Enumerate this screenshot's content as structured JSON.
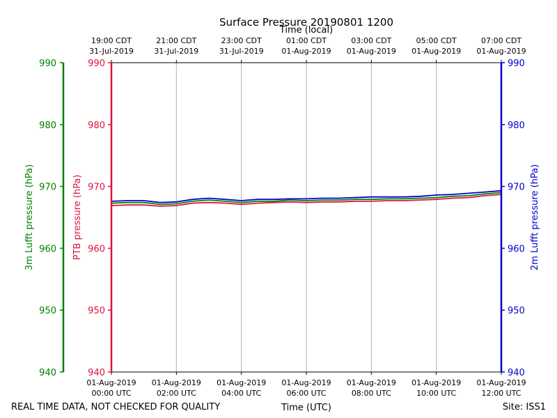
{
  "chart_data": {
    "type": "line",
    "title": "Surface Pressure 20190801 1200",
    "top_axis_label": "Time (local)",
    "xlabel": "Time (UTC)",
    "x_range_hours": [
      0,
      12
    ],
    "ylim": [
      940,
      990
    ],
    "y_ticks": [
      940,
      950,
      960,
      970,
      980,
      990
    ],
    "axes": {
      "left_outer": {
        "label": "3m Lufft pressure (hPa)",
        "color": "#008000"
      },
      "left_inner": {
        "label": "PTB pressure (hPa)",
        "color": "#dc143c"
      },
      "right": {
        "label": "2m Lufft pressure (hPa)",
        "color": "#0000cd"
      }
    },
    "bottom_ticks": [
      {
        "hour": 0,
        "line1": "01-Aug-2019",
        "line2": "00:00 UTC"
      },
      {
        "hour": 2,
        "line1": "01-Aug-2019",
        "line2": "02:00 UTC"
      },
      {
        "hour": 4,
        "line1": "01-Aug-2019",
        "line2": "04:00 UTC"
      },
      {
        "hour": 6,
        "line1": "01-Aug-2019",
        "line2": "06:00 UTC"
      },
      {
        "hour": 8,
        "line1": "01-Aug-2019",
        "line2": "08:00 UTC"
      },
      {
        "hour": 10,
        "line1": "01-Aug-2019",
        "line2": "10:00 UTC"
      },
      {
        "hour": 12,
        "line1": "01-Aug-2019",
        "line2": "12:00 UTC"
      }
    ],
    "top_ticks": [
      {
        "hour": 0,
        "line1": "19:00 CDT",
        "line2": "31-Jul-2019"
      },
      {
        "hour": 2,
        "line1": "21:00 CDT",
        "line2": "31-Jul-2019"
      },
      {
        "hour": 4,
        "line1": "23:00 CDT",
        "line2": "31-Jul-2019"
      },
      {
        "hour": 6,
        "line1": "01:00 CDT",
        "line2": "01-Aug-2019"
      },
      {
        "hour": 8,
        "line1": "03:00 CDT",
        "line2": "01-Aug-2019"
      },
      {
        "hour": 10,
        "line1": "05:00 CDT",
        "line2": "01-Aug-2019"
      },
      {
        "hour": 12,
        "line1": "07:00 CDT",
        "line2": "01-Aug-2019"
      }
    ],
    "series": [
      {
        "name": "3m Lufft pressure",
        "color": "#008000",
        "x": [
          0,
          0.5,
          1,
          1.5,
          2,
          2.5,
          3,
          3.5,
          4,
          4.5,
          5,
          5.5,
          6,
          6.5,
          7,
          7.5,
          8,
          8.5,
          9,
          9.5,
          10,
          10.5,
          11,
          11.5,
          12
        ],
        "values": [
          967.3,
          967.4,
          967.4,
          967.1,
          967.2,
          967.6,
          967.8,
          967.6,
          967.4,
          967.6,
          967.6,
          967.8,
          967.7,
          967.8,
          967.8,
          967.9,
          967.9,
          968.0,
          968.0,
          968.1,
          968.2,
          968.4,
          968.5,
          968.8,
          969.0
        ]
      },
      {
        "name": "PTB pressure",
        "color": "#dc143c",
        "x": [
          0,
          0.5,
          1,
          1.5,
          2,
          2.5,
          3,
          3.5,
          4,
          4.5,
          5,
          5.5,
          6,
          6.5,
          7,
          7.5,
          8,
          8.5,
          9,
          9.5,
          10,
          10.5,
          11,
          11.5,
          12
        ],
        "values": [
          966.9,
          967.0,
          967.0,
          966.8,
          966.9,
          967.3,
          967.4,
          967.3,
          967.1,
          967.3,
          967.4,
          967.5,
          967.4,
          967.5,
          967.5,
          967.6,
          967.6,
          967.7,
          967.7,
          967.8,
          967.9,
          968.1,
          968.2,
          968.5,
          968.7
        ]
      },
      {
        "name": "2m Lufft pressure",
        "color": "#0000cd",
        "x": [
          0,
          0.5,
          1,
          1.5,
          2,
          2.5,
          3,
          3.5,
          4,
          4.5,
          5,
          5.5,
          6,
          6.5,
          7,
          7.5,
          8,
          8.5,
          9,
          9.5,
          10,
          10.5,
          11,
          11.5,
          12
        ],
        "values": [
          967.6,
          967.7,
          967.7,
          967.4,
          967.5,
          967.9,
          968.1,
          967.9,
          967.7,
          967.9,
          967.9,
          968.0,
          968.0,
          968.1,
          968.1,
          968.2,
          968.3,
          968.3,
          968.3,
          968.4,
          968.6,
          968.7,
          968.9,
          969.1,
          969.3
        ]
      }
    ]
  },
  "footer": {
    "quality_note": "REAL TIME DATA, NOT CHECKED FOR QUALITY",
    "site": "Site: ISS1"
  }
}
